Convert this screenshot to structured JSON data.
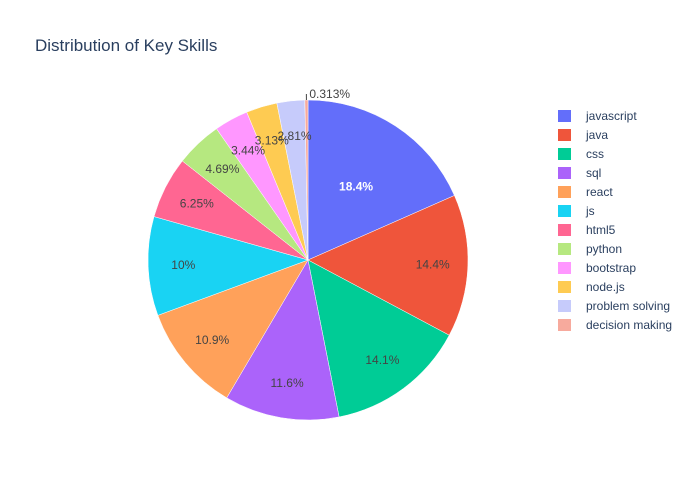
{
  "chart_data": {
    "type": "pie",
    "title": "Distribution of Key Skills",
    "slices": [
      {
        "label": "javascript",
        "value": 18.4,
        "text": "18.4%",
        "color": "#636efa"
      },
      {
        "label": "java",
        "value": 14.4,
        "text": "14.4%",
        "color": "#EF553B"
      },
      {
        "label": "css",
        "value": 14.1,
        "text": "14.1%",
        "color": "#00cc96"
      },
      {
        "label": "sql",
        "value": 11.6,
        "text": "11.6%",
        "color": "#ab63fa"
      },
      {
        "label": "react",
        "value": 10.9,
        "text": "10.9%",
        "color": "#FFA15A"
      },
      {
        "label": "js",
        "value": 10.0,
        "text": "10%",
        "color": "#19d3f3"
      },
      {
        "label": "html5",
        "value": 6.25,
        "text": "6.25%",
        "color": "#FF6692"
      },
      {
        "label": "python",
        "value": 4.69,
        "text": "4.69%",
        "color": "#B6E880"
      },
      {
        "label": "bootstrap",
        "value": 3.44,
        "text": "3.44%",
        "color": "#FF97FF"
      },
      {
        "label": "node.js",
        "value": 3.13,
        "text": "3.13%",
        "color": "#FECB52"
      },
      {
        "label": "problem solving",
        "value": 2.81,
        "text": "2.81%",
        "color": "#c6cbfb"
      },
      {
        "label": "decision making",
        "value": 0.313,
        "text": "0.313%",
        "color": "#f7aa9d"
      }
    ],
    "legend_position": "right",
    "direction": "clockwise",
    "start": "top"
  }
}
